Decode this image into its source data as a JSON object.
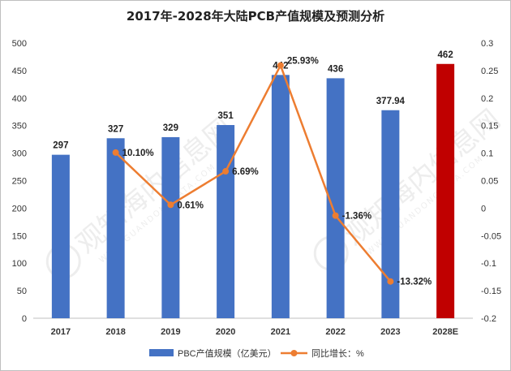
{
  "chart_data": {
    "type": "bar+line",
    "title": "2017年-2028年大陆PCB产值规模及预测分析",
    "categories": [
      "2017",
      "2018",
      "2019",
      "2020",
      "2021",
      "2022",
      "2023",
      "2028E"
    ],
    "series": [
      {
        "name": "PBC产值规模（亿美元）",
        "type": "bar",
        "axis": "left",
        "values": [
          297,
          327,
          329,
          351,
          442,
          436,
          377.94,
          462
        ],
        "labels": [
          "297",
          "327",
          "329",
          "351",
          "442",
          "436",
          "377.94",
          "462"
        ],
        "colors": [
          "#4472c4",
          "#4472c4",
          "#4472c4",
          "#4472c4",
          "#4472c4",
          "#4472c4",
          "#4472c4",
          "#c00000"
        ]
      },
      {
        "name": "同比增长：%",
        "type": "line",
        "axis": "right",
        "x": [
          "2018",
          "2019",
          "2020",
          "2021",
          "2022",
          "2023"
        ],
        "values": [
          0.101,
          0.0061,
          0.0669,
          0.2593,
          -0.0136,
          -0.1332
        ],
        "labels": [
          "10.10%",
          "0.61%",
          "6.69%",
          "25.93%",
          "-1.36%",
          "-13.32%"
        ],
        "color": "#ed7d31"
      }
    ],
    "y_left": {
      "min": 0,
      "max": 500,
      "ticks": [
        0,
        50,
        100,
        150,
        200,
        250,
        300,
        350,
        400,
        450,
        500
      ],
      "tick_labels": [
        "0",
        "50",
        "100",
        "150",
        "200",
        "250",
        "300",
        "350",
        "400",
        "450",
        "500"
      ]
    },
    "y_right": {
      "min": -0.2,
      "max": 0.3,
      "ticks": [
        -0.2,
        -0.15,
        -0.1,
        -0.05,
        0,
        0.05,
        0.1,
        0.15,
        0.2,
        0.25,
        0.3
      ],
      "tick_labels": [
        "-0.2",
        "-0.15",
        "-0.1",
        "-0.05",
        "0",
        "0.05",
        "0.1",
        "0.15",
        "0.2",
        "0.25",
        "0.3"
      ]
    },
    "grid": false,
    "legend_position": "bottom"
  },
  "watermark": {
    "text": "观知海内信息网",
    "subtext": "WWW.GUANDONGDATA.COM"
  }
}
